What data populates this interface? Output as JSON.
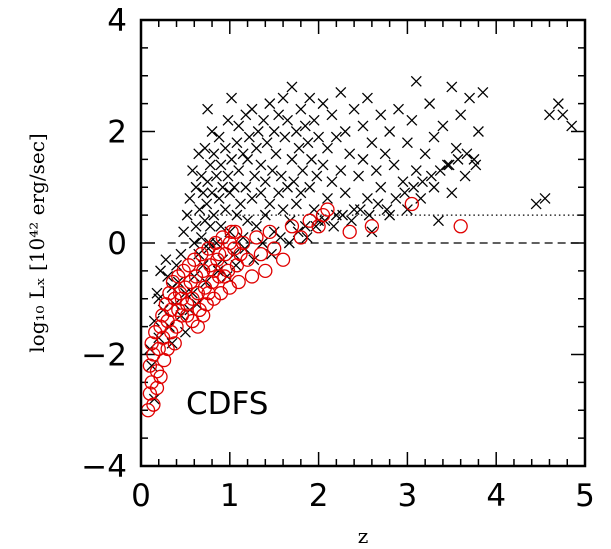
{
  "chart_data": {
    "type": "scatter",
    "xlabel": "z",
    "ylabel": "log₁₀ Lₓ [10⁴² erg/sec]",
    "xlim": [
      0,
      5
    ],
    "ylim": [
      -4,
      4
    ],
    "x_ticks": [
      "0",
      "1",
      "2",
      "3",
      "4",
      "5"
    ],
    "y_ticks": [
      "−4",
      "−2",
      "0",
      "2",
      "4"
    ],
    "annotation": "CDFS",
    "grid": false,
    "reference_lines": [
      {
        "y": 0.5,
        "style": "dotted",
        "xrange": [
          0.5,
          5
        ]
      },
      {
        "y": 0.0,
        "style": "dashed",
        "xrange": [
          0.3,
          5
        ]
      }
    ],
    "series": [
      {
        "marker": "cross",
        "color": "#000000",
        "points": [
          [
            0.1,
            -1.9
          ],
          [
            0.12,
            -2.2
          ],
          [
            0.15,
            -1.4
          ],
          [
            0.18,
            -0.9
          ],
          [
            0.2,
            -1.7
          ],
          [
            0.22,
            -0.5
          ],
          [
            0.25,
            -1.2
          ],
          [
            0.28,
            -0.3
          ],
          [
            0.3,
            -0.6
          ],
          [
            0.32,
            -1.5
          ],
          [
            0.35,
            -0.8
          ],
          [
            0.38,
            -1.1
          ],
          [
            0.4,
            -0.4
          ],
          [
            0.42,
            -0.7
          ],
          [
            0.45,
            -1.3
          ],
          [
            0.48,
            0.2
          ],
          [
            0.5,
            -0.9
          ],
          [
            0.52,
            0.5
          ],
          [
            0.55,
            -1.2
          ],
          [
            0.55,
            0.8
          ],
          [
            0.58,
            1.3
          ],
          [
            0.6,
            0.0
          ],
          [
            0.6,
            -0.6
          ],
          [
            0.62,
            1.0
          ],
          [
            0.62,
            0.3
          ],
          [
            0.65,
            1.6
          ],
          [
            0.65,
            -0.2
          ],
          [
            0.66,
            0.6
          ],
          [
            0.68,
            1.2
          ],
          [
            0.68,
            0.1
          ],
          [
            0.7,
            0.9
          ],
          [
            0.7,
            -0.4
          ],
          [
            0.72,
            1.7
          ],
          [
            0.72,
            0.4
          ],
          [
            0.74,
            0.7
          ],
          [
            0.75,
            2.4
          ],
          [
            0.75,
            1.1
          ],
          [
            0.76,
            -0.1
          ],
          [
            0.78,
            0.3
          ],
          [
            0.78,
            1.4
          ],
          [
            0.8,
            0.9
          ],
          [
            0.8,
            2.0
          ],
          [
            0.82,
            1.6
          ],
          [
            0.82,
            0.5
          ],
          [
            0.85,
            1.2
          ],
          [
            0.85,
            0.0
          ],
          [
            0.88,
            0.8
          ],
          [
            0.88,
            1.9
          ],
          [
            0.9,
            1.4
          ],
          [
            0.9,
            0.3
          ],
          [
            0.92,
            -0.3
          ],
          [
            0.92,
            1.0
          ],
          [
            0.95,
            1.7
          ],
          [
            0.95,
            0.6
          ],
          [
            0.98,
            2.2
          ],
          [
            0.98,
            1.2
          ],
          [
            1.0,
            0.2
          ],
          [
            1.0,
            0.9
          ],
          [
            1.02,
            1.5
          ],
          [
            1.02,
            2.6
          ],
          [
            1.05,
            1.0
          ],
          [
            1.05,
            -0.2
          ],
          [
            1.08,
            1.8
          ],
          [
            1.08,
            0.5
          ],
          [
            1.1,
            1.3
          ],
          [
            1.1,
            2.1
          ],
          [
            1.12,
            0.7
          ],
          [
            1.15,
            1.6
          ],
          [
            1.15,
            0.1
          ],
          [
            1.18,
            2.3
          ],
          [
            1.18,
            1.0
          ],
          [
            1.2,
            0.4
          ],
          [
            1.2,
            1.5
          ],
          [
            1.22,
            1.9
          ],
          [
            1.25,
            0.8
          ],
          [
            1.25,
            2.4
          ],
          [
            1.28,
            1.2
          ],
          [
            1.3,
            0.3
          ],
          [
            1.3,
            1.7
          ],
          [
            1.32,
            2.0
          ],
          [
            1.35,
            0.9
          ],
          [
            1.35,
            1.4
          ],
          [
            1.38,
            2.2
          ],
          [
            1.4,
            0.5
          ],
          [
            1.4,
            1.1
          ],
          [
            1.42,
            1.8
          ],
          [
            1.45,
            2.5
          ],
          [
            1.45,
            0.7
          ],
          [
            1.48,
            1.3
          ],
          [
            1.5,
            2.0
          ],
          [
            1.5,
            0.2
          ],
          [
            1.52,
            1.6
          ],
          [
            1.55,
            2.3
          ],
          [
            1.55,
            0.9
          ],
          [
            1.58,
            1.2
          ],
          [
            1.6,
            2.6
          ],
          [
            1.6,
            0.6
          ],
          [
            1.62,
            1.9
          ],
          [
            1.65,
            1.0
          ],
          [
            1.65,
            2.2
          ],
          [
            1.68,
            0.4
          ],
          [
            1.7,
            1.5
          ],
          [
            1.7,
            2.8
          ],
          [
            1.72,
            1.1
          ],
          [
            1.75,
            2.0
          ],
          [
            1.75,
            0.7
          ],
          [
            1.78,
            1.7
          ],
          [
            1.8,
            2.4
          ],
          [
            1.8,
            0.9
          ],
          [
            1.82,
            1.3
          ],
          [
            1.85,
            2.1
          ],
          [
            1.85,
            0.3
          ],
          [
            1.88,
            1.8
          ],
          [
            1.9,
            2.6
          ],
          [
            1.9,
            1.0
          ],
          [
            1.92,
            1.5
          ],
          [
            1.95,
            0.6
          ],
          [
            1.95,
            2.2
          ],
          [
            1.98,
            1.2
          ],
          [
            2.0,
            1.9
          ],
          [
            2.0,
            0.4
          ],
          [
            2.05,
            2.5
          ],
          [
            2.05,
            1.4
          ],
          [
            2.1,
            0.8
          ],
          [
            2.1,
            1.7
          ],
          [
            2.15,
            2.3
          ],
          [
            2.15,
            1.1
          ],
          [
            2.2,
            0.5
          ],
          [
            2.2,
            1.9
          ],
          [
            2.25,
            2.7
          ],
          [
            2.25,
            1.3
          ],
          [
            2.3,
            0.9
          ],
          [
            2.3,
            2.0
          ],
          [
            2.35,
            1.6
          ],
          [
            2.4,
            2.4
          ],
          [
            2.4,
            0.6
          ],
          [
            2.45,
            1.2
          ],
          [
            2.5,
            2.1
          ],
          [
            2.5,
            1.5
          ],
          [
            2.55,
            0.8
          ],
          [
            2.55,
            2.6
          ],
          [
            2.6,
            1.8
          ],
          [
            2.6,
            0.2
          ],
          [
            2.65,
            1.3
          ],
          [
            2.7,
            2.3
          ],
          [
            2.7,
            1.0
          ],
          [
            2.75,
            1.6
          ],
          [
            2.8,
            2.0
          ],
          [
            2.8,
            0.5
          ],
          [
            2.85,
            1.4
          ],
          [
            2.9,
            2.4
          ],
          [
            2.95,
            1.1
          ],
          [
            3.0,
            1.8
          ],
          [
            3.0,
            0.6
          ],
          [
            3.05,
            2.2
          ],
          [
            3.1,
            1.3
          ],
          [
            3.1,
            2.9
          ],
          [
            3.15,
            0.8
          ],
          [
            3.2,
            1.6
          ],
          [
            3.25,
            2.5
          ],
          [
            3.3,
            1.0
          ],
          [
            3.3,
            1.9
          ],
          [
            3.35,
            0.4
          ],
          [
            3.4,
            2.1
          ],
          [
            3.45,
            1.4
          ],
          [
            3.5,
            2.8
          ],
          [
            3.5,
            0.9
          ],
          [
            3.55,
            1.7
          ],
          [
            3.6,
            2.3
          ],
          [
            3.65,
            1.2
          ],
          [
            3.7,
            2.6
          ],
          [
            3.75,
            1.5
          ],
          [
            3.8,
            2.0
          ],
          [
            3.85,
            2.7
          ],
          [
            4.45,
            0.7
          ],
          [
            4.55,
            0.8
          ],
          [
            4.6,
            2.3
          ],
          [
            4.7,
            2.5
          ],
          [
            4.75,
            2.3
          ],
          [
            4.85,
            2.1
          ],
          [
            0.15,
            -2.8
          ],
          [
            0.2,
            -1.0
          ],
          [
            0.35,
            -1.8
          ],
          [
            0.45,
            -0.2
          ],
          [
            0.5,
            -1.6
          ],
          [
            0.58,
            -0.9
          ],
          [
            0.63,
            -1.1
          ],
          [
            0.73,
            -0.7
          ],
          [
            0.77,
            0.0
          ],
          [
            0.87,
            -0.5
          ],
          [
            0.97,
            -0.6
          ],
          [
            1.07,
            -0.4
          ],
          [
            1.17,
            -0.1
          ],
          [
            1.27,
            -0.3
          ],
          [
            1.37,
            0.0
          ],
          [
            1.47,
            -0.2
          ],
          [
            1.57,
            0.1
          ],
          [
            1.67,
            0.0
          ],
          [
            1.77,
            0.2
          ],
          [
            1.87,
            0.1
          ],
          [
            1.97,
            0.3
          ],
          [
            2.07,
            0.4
          ],
          [
            2.17,
            0.3
          ],
          [
            2.27,
            0.5
          ],
          [
            2.37,
            0.4
          ],
          [
            2.47,
            0.6
          ],
          [
            2.57,
            0.5
          ],
          [
            2.67,
            0.7
          ],
          [
            2.77,
            0.6
          ],
          [
            2.87,
            0.8
          ],
          [
            2.97,
            0.9
          ],
          [
            3.07,
            1.0
          ],
          [
            3.17,
            1.1
          ],
          [
            3.27,
            1.2
          ],
          [
            3.37,
            1.3
          ],
          [
            3.47,
            1.4
          ],
          [
            3.57,
            1.5
          ],
          [
            3.67,
            1.6
          ],
          [
            3.77,
            1.4
          ]
        ]
      },
      {
        "marker": "circle",
        "color": "#e00000",
        "points": [
          [
            0.08,
            -3.0
          ],
          [
            0.1,
            -2.7
          ],
          [
            0.12,
            -2.5
          ],
          [
            0.1,
            -2.2
          ],
          [
            0.14,
            -2.0
          ],
          [
            0.12,
            -1.8
          ],
          [
            0.16,
            -1.6
          ],
          [
            0.18,
            -2.3
          ],
          [
            0.2,
            -1.9
          ],
          [
            0.22,
            -1.5
          ],
          [
            0.24,
            -1.3
          ],
          [
            0.25,
            -1.7
          ],
          [
            0.28,
            -1.1
          ],
          [
            0.3,
            -1.4
          ],
          [
            0.32,
            -0.9
          ],
          [
            0.34,
            -1.2
          ],
          [
            0.36,
            -0.7
          ],
          [
            0.38,
            -1.0
          ],
          [
            0.4,
            -1.5
          ],
          [
            0.42,
            -0.6
          ],
          [
            0.44,
            -0.9
          ],
          [
            0.46,
            -1.3
          ],
          [
            0.48,
            -0.5
          ],
          [
            0.5,
            -0.8
          ],
          [
            0.52,
            -1.1
          ],
          [
            0.54,
            -0.4
          ],
          [
            0.56,
            -0.7
          ],
          [
            0.58,
            -1.0
          ],
          [
            0.6,
            -0.3
          ],
          [
            0.62,
            -0.6
          ],
          [
            0.64,
            -0.9
          ],
          [
            0.66,
            -1.2
          ],
          [
            0.68,
            -0.2
          ],
          [
            0.7,
            -0.5
          ],
          [
            0.72,
            -0.8
          ],
          [
            0.74,
            -1.1
          ],
          [
            0.76,
            -0.1
          ],
          [
            0.78,
            -0.4
          ],
          [
            0.8,
            -0.7
          ],
          [
            0.82,
            -1.0
          ],
          [
            0.84,
            0.0
          ],
          [
            0.86,
            -0.3
          ],
          [
            0.88,
            -0.6
          ],
          [
            0.9,
            -0.9
          ],
          [
            0.92,
            0.1
          ],
          [
            0.95,
            -0.2
          ],
          [
            0.98,
            -0.5
          ],
          [
            1.0,
            -0.8
          ],
          [
            1.02,
            0.2
          ],
          [
            1.05,
            -0.1
          ],
          [
            1.08,
            -0.4
          ],
          [
            1.1,
            -0.7
          ],
          [
            1.15,
            0.0
          ],
          [
            1.2,
            -0.3
          ],
          [
            1.25,
            -0.6
          ],
          [
            1.3,
            0.1
          ],
          [
            1.35,
            -0.2
          ],
          [
            1.4,
            -0.5
          ],
          [
            1.45,
            0.2
          ],
          [
            1.5,
            -0.1
          ],
          [
            1.6,
            -0.3
          ],
          [
            1.7,
            0.3
          ],
          [
            1.8,
            0.1
          ],
          [
            1.9,
            0.4
          ],
          [
            2.0,
            0.3
          ],
          [
            2.05,
            0.5
          ],
          [
            2.1,
            0.6
          ],
          [
            2.35,
            0.2
          ],
          [
            2.6,
            0.3
          ],
          [
            3.05,
            0.7
          ],
          [
            3.6,
            0.3
          ],
          [
            0.14,
            -2.9
          ],
          [
            0.18,
            -2.6
          ],
          [
            0.22,
            -2.4
          ],
          [
            0.26,
            -2.1
          ],
          [
            0.3,
            -1.9
          ],
          [
            0.34,
            -1.6
          ],
          [
            0.38,
            -1.8
          ],
          [
            0.42,
            -1.2
          ],
          [
            0.46,
            -1.0
          ],
          [
            0.52,
            -1.3
          ],
          [
            0.58,
            -1.4
          ],
          [
            0.64,
            -1.5
          ],
          [
            0.7,
            -1.3
          ],
          [
            0.76,
            -0.9
          ],
          [
            0.82,
            -0.5
          ],
          [
            0.88,
            -0.2
          ],
          [
            0.94,
            -0.6
          ],
          [
            1.0,
            0.0
          ],
          [
            1.06,
            0.2
          ],
          [
            1.12,
            -0.2
          ]
        ]
      }
    ]
  }
}
